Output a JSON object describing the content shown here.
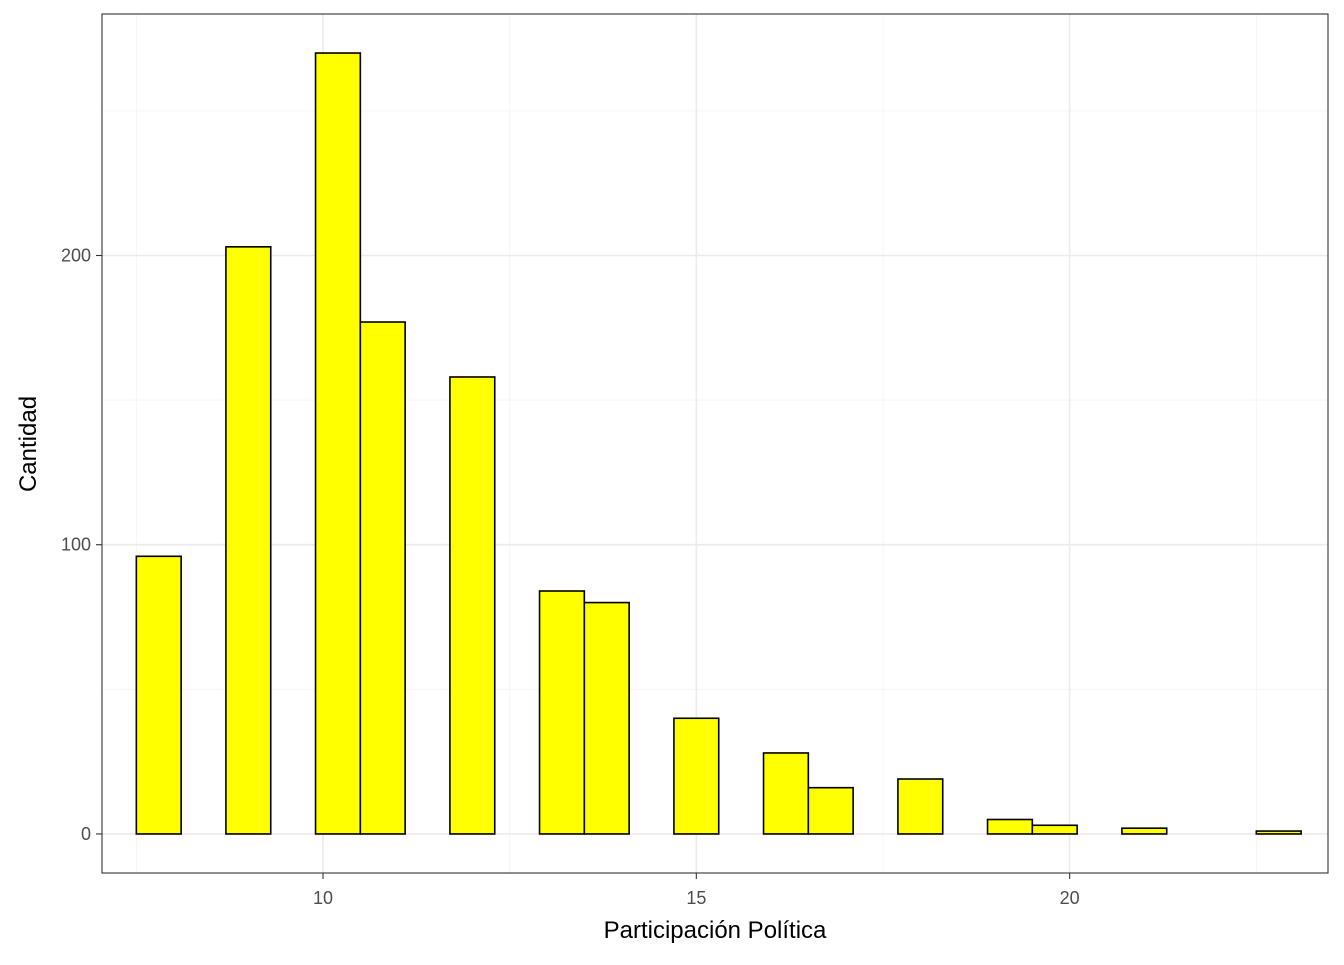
{
  "chart_data": {
    "type": "bar",
    "subtype": "histogram",
    "xlabel": "Participación Política",
    "ylabel": "Cantidad",
    "xlim": [
      7.04,
      23.46
    ],
    "ylim": [
      -13.5,
      283.5
    ],
    "x_ticks": [
      10,
      15,
      20
    ],
    "y_ticks": [
      0,
      100,
      200
    ],
    "x_minor_gridlines": [
      7.5,
      12.5,
      17.5,
      22.5
    ],
    "y_minor_gridlines": [
      50,
      150,
      250
    ],
    "grid": true,
    "bin_width": 0.6,
    "bins": [
      {
        "start": 7.5,
        "end": 8.1,
        "count": 96
      },
      {
        "start": 8.1,
        "end": 8.7,
        "count": 0
      },
      {
        "start": 8.7,
        "end": 9.3,
        "count": 203
      },
      {
        "start": 9.3,
        "end": 9.9,
        "count": 0
      },
      {
        "start": 9.9,
        "end": 10.5,
        "count": 270
      },
      {
        "start": 10.5,
        "end": 11.1,
        "count": 177
      },
      {
        "start": 11.1,
        "end": 11.7,
        "count": 0
      },
      {
        "start": 11.7,
        "end": 12.3,
        "count": 158
      },
      {
        "start": 12.3,
        "end": 12.9,
        "count": 0
      },
      {
        "start": 12.9,
        "end": 13.5,
        "count": 84
      },
      {
        "start": 13.5,
        "end": 14.1,
        "count": 80
      },
      {
        "start": 14.1,
        "end": 14.7,
        "count": 0
      },
      {
        "start": 14.7,
        "end": 15.3,
        "count": 40
      },
      {
        "start": 15.3,
        "end": 15.9,
        "count": 0
      },
      {
        "start": 15.9,
        "end": 16.5,
        "count": 28
      },
      {
        "start": 16.5,
        "end": 17.1,
        "count": 16
      },
      {
        "start": 17.1,
        "end": 17.7,
        "count": 0
      },
      {
        "start": 17.7,
        "end": 18.3,
        "count": 19
      },
      {
        "start": 18.3,
        "end": 18.9,
        "count": 0
      },
      {
        "start": 18.9,
        "end": 19.5,
        "count": 5
      },
      {
        "start": 19.5,
        "end": 20.1,
        "count": 3
      },
      {
        "start": 20.1,
        "end": 20.7,
        "count": 0
      },
      {
        "start": 20.7,
        "end": 21.3,
        "count": 2
      },
      {
        "start": 21.3,
        "end": 21.9,
        "count": 0
      },
      {
        "start": 21.9,
        "end": 22.5,
        "count": 0
      },
      {
        "start": 22.5,
        "end": 23.1,
        "count": 1
      }
    ],
    "colors": {
      "bar_fill": "#FFFF00",
      "bar_stroke": "#000000",
      "panel_background": "#FFFFFF",
      "panel_border": "#333333",
      "grid_major": "#EBEBEB",
      "grid_minor": "#F5F5F5",
      "tick_label": "#4D4D4D",
      "axis_title": "#000000"
    }
  }
}
